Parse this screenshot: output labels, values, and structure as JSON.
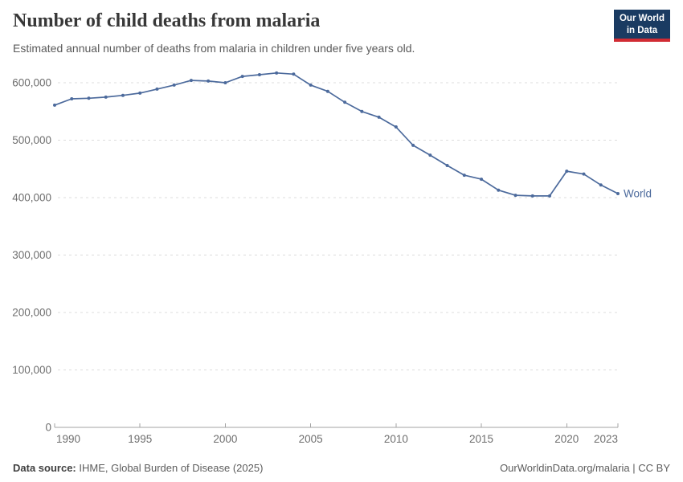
{
  "header": {
    "title": "Number of child deaths from malaria",
    "subtitle": "Estimated annual number of deaths from malaria in children under five years old.",
    "logo": {
      "line1": "Our World",
      "line2": "in Data"
    }
  },
  "chart_data": {
    "type": "line",
    "title": "Number of child deaths from malaria",
    "xlabel": "",
    "ylabel": "",
    "x": [
      1990,
      1991,
      1992,
      1993,
      1994,
      1995,
      1996,
      1997,
      1998,
      1999,
      2000,
      2001,
      2002,
      2003,
      2004,
      2005,
      2006,
      2007,
      2008,
      2009,
      2010,
      2011,
      2012,
      2013,
      2014,
      2015,
      2016,
      2017,
      2018,
      2019,
      2020,
      2021,
      2022,
      2023
    ],
    "series": [
      {
        "name": "World",
        "color": "#4c6a9c",
        "values": [
          561000,
          572000,
          573000,
          575000,
          578000,
          582000,
          589000,
          596000,
          604000,
          603000,
          600000,
          611000,
          614000,
          617000,
          615000,
          596000,
          585000,
          566000,
          550000,
          540000,
          523000,
          491000,
          474000,
          456000,
          439000,
          432000,
          413000,
          404000,
          403000,
          403000,
          446000,
          441000,
          422000,
          407000
        ]
      }
    ],
    "xlim": [
      1990,
      2023
    ],
    "ylim": [
      0,
      600000
    ],
    "yticks": [
      0,
      100000,
      200000,
      300000,
      400000,
      500000,
      600000
    ],
    "xticks": [
      1990,
      1995,
      2000,
      2005,
      2010,
      2015,
      2020,
      2023
    ],
    "grid": "horizontal-dashed",
    "legend": "line-end-label"
  },
  "footer": {
    "source_label": "Data source:",
    "source_value": "IHME, Global Burden of Disease (2025)",
    "credit": "OurWorldinData.org/malaria | CC BY"
  },
  "colors": {
    "line": "#4c6a9c",
    "logo_bg": "#1a3b62",
    "logo_bar": "#d12b33",
    "grid": "#dcdcdc",
    "axis": "#a3a3a3",
    "tick_text": "#6e6e6e"
  }
}
